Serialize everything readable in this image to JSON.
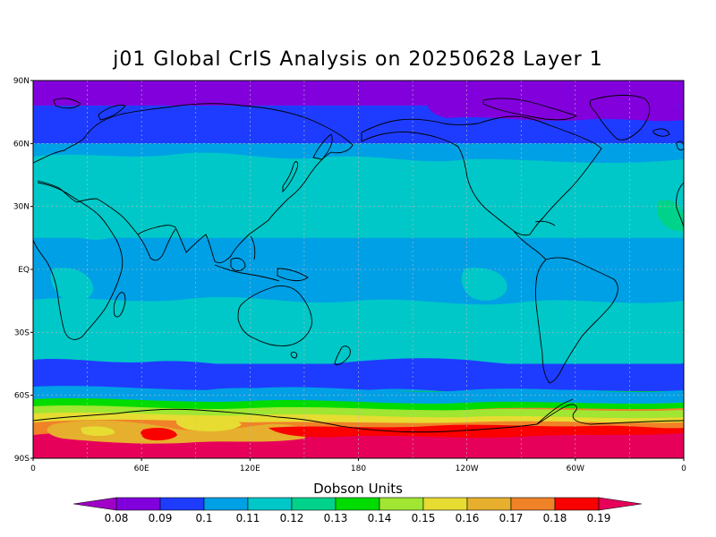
{
  "title": "j01 Global CrIS Analysis on 20250628 Layer 1",
  "units_label": "Dobson Units",
  "lat_ticks": [
    "90N",
    "60N",
    "30N",
    "EQ",
    "30S",
    "60S",
    "90S"
  ],
  "lon_ticks": [
    "0",
    "60E",
    "120E",
    "180",
    "120W",
    "60W",
    "0"
  ],
  "colorbar": {
    "labels": [
      "0.08",
      "0.09",
      "0.1",
      "0.11",
      "0.12",
      "0.13",
      "0.14",
      "0.15",
      "0.16",
      "0.17",
      "0.18",
      "0.19"
    ],
    "colors": [
      "#a000c8",
      "#8200dc",
      "#1e3cff",
      "#00a0e6",
      "#00c8c8",
      "#00d28c",
      "#00dc00",
      "#a0e632",
      "#e6dc32",
      "#e6af2d",
      "#f08228",
      "#fa0000",
      "#e6005a"
    ]
  },
  "chart_data": {
    "type": "heatmap",
    "title": "j01 Global CrIS Analysis on 20250628 Layer 1",
    "colorbar_label": "Dobson Units",
    "x_range": [
      0,
      360
    ],
    "y_range": [
      -90,
      90
    ],
    "grid": true,
    "latitude_band_levels": [
      {
        "lat": "90N-78N",
        "value": 0.08
      },
      {
        "lat": "78N-60N",
        "value": 0.09
      },
      {
        "lat": "60N-45N",
        "value": 0.1
      },
      {
        "lat": "45N-15N",
        "value": 0.11
      },
      {
        "lat": "15N-30S",
        "value": 0.1
      },
      {
        "lat": "30S-45S",
        "value": 0.11
      },
      {
        "lat": "45S-55S",
        "value": 0.09
      },
      {
        "lat": "58S-62S",
        "value": 0.13
      },
      {
        "lat": "62S-66S",
        "value": 0.15
      },
      {
        "lat": "66S-74S",
        "value": 0.17
      },
      {
        "lat": "74S-90S",
        "value": 0.19
      }
    ]
  }
}
